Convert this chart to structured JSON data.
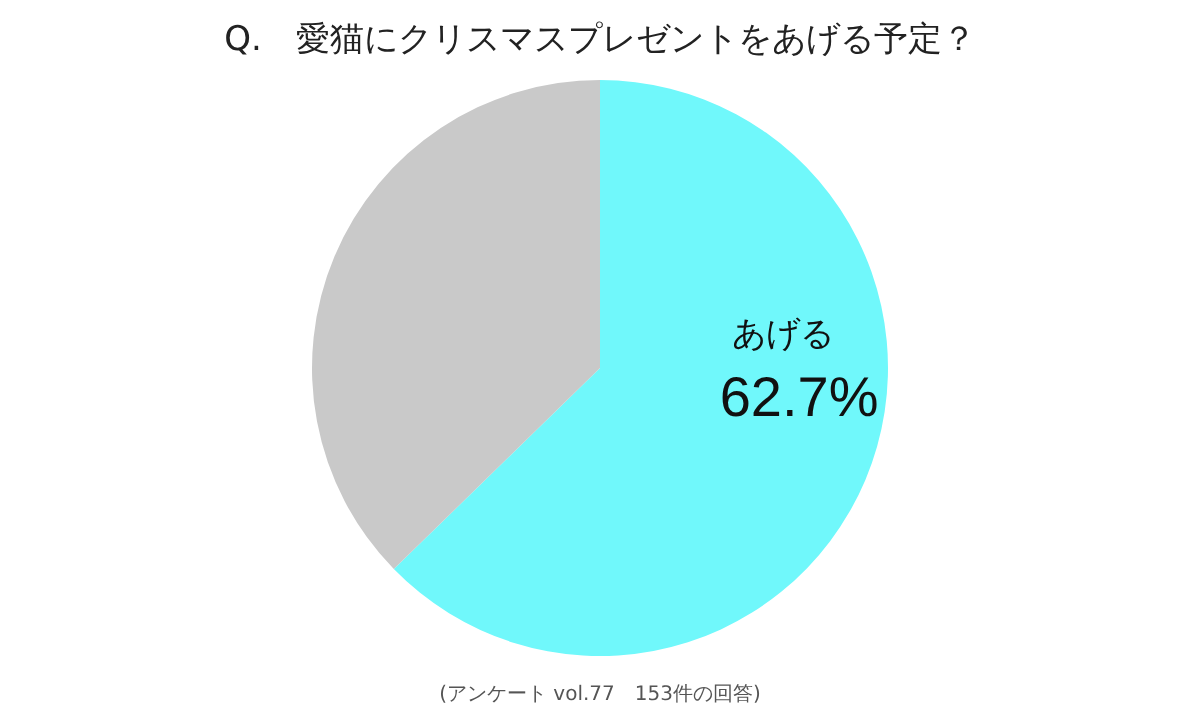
{
  "chart_data": {
    "type": "pie",
    "title": "Q.　愛猫にクリスマスプレゼントをあげる予定？",
    "categories": [
      "あげる",
      null
    ],
    "values": [
      62.7,
      37.3
    ],
    "value_labels": [
      "62.7%",
      null
    ],
    "colors": [
      "#70f8fb",
      "#c9c9c9"
    ],
    "annotations": [
      "(アンケート vol.77　153件の回答)"
    ]
  }
}
